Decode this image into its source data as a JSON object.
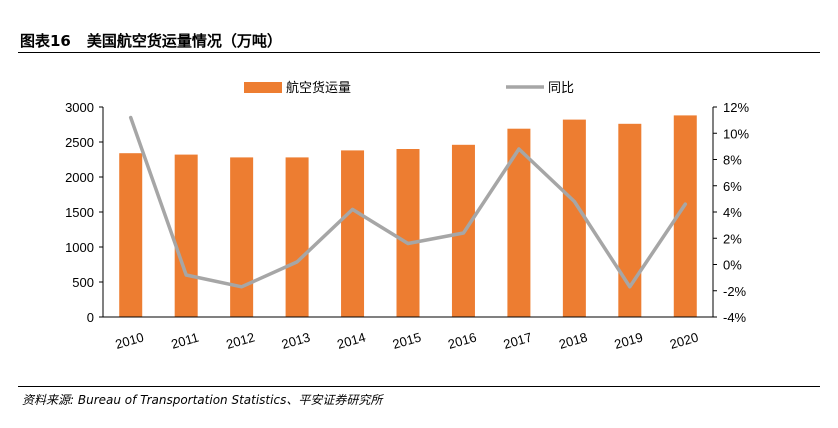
{
  "figure": {
    "number": "图表16",
    "title": "美国航空货运量情况（万吨）",
    "source": "资料来源: Bureau of Transportation Statistics、平安证券研究所"
  },
  "colors": {
    "bar": "#ED7D31",
    "line": "#A6A6A6"
  },
  "chart_data": {
    "type": "bar",
    "categories": [
      "2010",
      "2011",
      "2012",
      "2013",
      "2014",
      "2015",
      "2016",
      "2017",
      "2018",
      "2019",
      "2020"
    ],
    "series": [
      {
        "name": "航空货运量",
        "type": "bar",
        "axis": "left",
        "values": [
          2340,
          2320,
          2280,
          2280,
          2380,
          2400,
          2460,
          2690,
          2820,
          2760,
          2880
        ]
      },
      {
        "name": "同比",
        "type": "line",
        "axis": "right",
        "unit": "%",
        "values": [
          11.2,
          -0.8,
          -1.7,
          0.2,
          4.2,
          1.6,
          2.4,
          8.8,
          4.8,
          -1.7,
          4.6
        ]
      }
    ],
    "ylim": [
      0,
      3000
    ],
    "y_ticks": [
      0,
      500,
      1000,
      1500,
      2000,
      2500,
      3000
    ],
    "y2lim": [
      -4,
      12
    ],
    "y2_ticks": [
      "-4%",
      "-2%",
      "0%",
      "2%",
      "4%",
      "6%",
      "8%",
      "10%",
      "12%"
    ],
    "legend_position": "top-center",
    "grid": false
  }
}
